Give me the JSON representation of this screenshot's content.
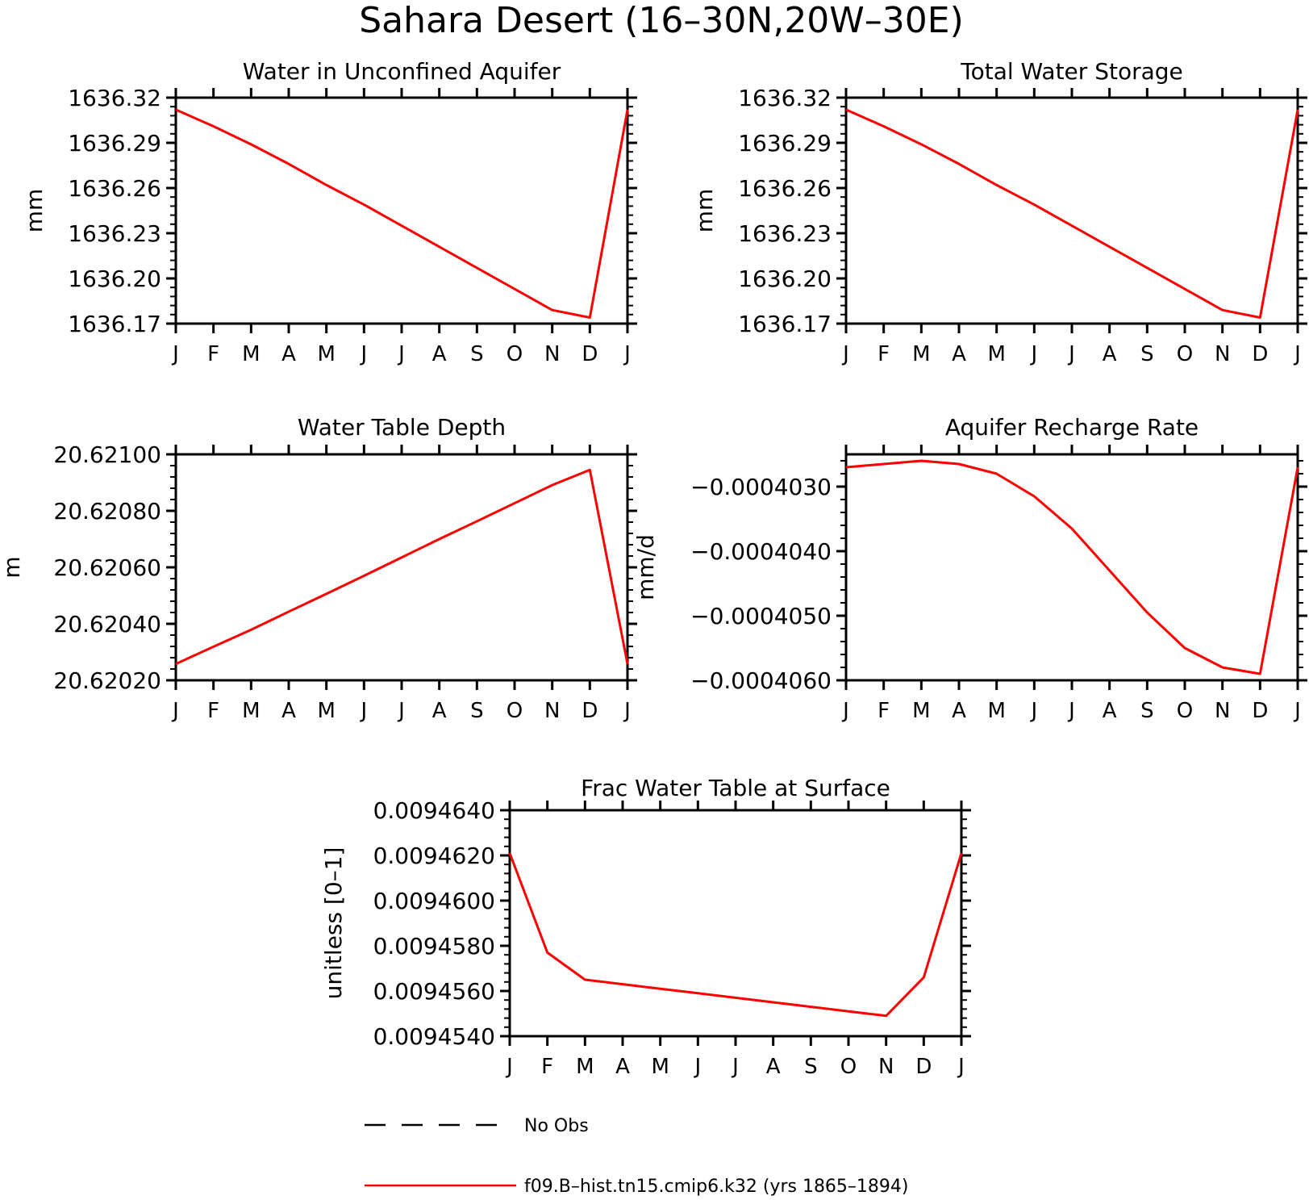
{
  "title": "Sahara Desert (16–30N,20W–30E)",
  "months": [
    "J",
    "F",
    "M",
    "A",
    "M",
    "J",
    "J",
    "A",
    "S",
    "O",
    "N",
    "D",
    "J"
  ],
  "legend": [
    {
      "label": "No Obs",
      "color": "#000000",
      "style": "dashed"
    },
    {
      "label": "f09.B–hist.tn15.cmip6.k32 (yrs 1865–1894)",
      "color": "#ff0000",
      "style": "solid"
    }
  ],
  "chart_data": [
    {
      "type": "line",
      "title": "Water in Unconfined Aquifer",
      "ylabel": "mm",
      "ylim": [
        1636.17,
        1636.32
      ],
      "yticks": [
        "1636.32",
        "1636.29",
        "1636.26",
        "1636.23",
        "1636.20",
        "1636.17"
      ],
      "ytick_values": [
        1636.32,
        1636.29,
        1636.26,
        1636.23,
        1636.2,
        1636.17
      ],
      "x": [
        1,
        2,
        3,
        4,
        5,
        6,
        7,
        8,
        9,
        10,
        11,
        12,
        13
      ],
      "series": [
        {
          "name": "f09.B–hist.tn15.cmip6.k32 (yrs 1865–1894)",
          "values": [
            1636.312,
            1636.301,
            1636.289,
            1636.276,
            1636.262,
            1636.249,
            1636.235,
            1636.221,
            1636.207,
            1636.193,
            1636.179,
            1636.174,
            1636.312
          ]
        }
      ]
    },
    {
      "type": "line",
      "title": "Total Water Storage",
      "ylabel": "mm",
      "ylim": [
        1636.17,
        1636.32
      ],
      "yticks": [
        "1636.32",
        "1636.29",
        "1636.26",
        "1636.23",
        "1636.20",
        "1636.17"
      ],
      "ytick_values": [
        1636.32,
        1636.29,
        1636.26,
        1636.23,
        1636.2,
        1636.17
      ],
      "x": [
        1,
        2,
        3,
        4,
        5,
        6,
        7,
        8,
        9,
        10,
        11,
        12,
        13
      ],
      "series": [
        {
          "name": "f09.B–hist.tn15.cmip6.k32 (yrs 1865–1894)",
          "values": [
            1636.312,
            1636.301,
            1636.289,
            1636.276,
            1636.262,
            1636.249,
            1636.235,
            1636.221,
            1636.207,
            1636.193,
            1636.179,
            1636.174,
            1636.312
          ]
        }
      ]
    },
    {
      "type": "line",
      "title": "Water Table Depth",
      "ylabel": "m",
      "ylim": [
        20.6202,
        20.621
      ],
      "yticks": [
        "20.62100",
        "20.62080",
        "20.62060",
        "20.62040",
        "20.62020"
      ],
      "ytick_values": [
        20.621,
        20.6208,
        20.6206,
        20.6204,
        20.6202
      ],
      "x": [
        1,
        2,
        3,
        4,
        5,
        6,
        7,
        8,
        9,
        10,
        11,
        12,
        13
      ],
      "series": [
        {
          "name": "f09.B–hist.tn15.cmip6.k32 (yrs 1865–1894)",
          "values": [
            20.620258,
            20.620319,
            20.620379,
            20.620443,
            20.620506,
            20.62057,
            20.620635,
            20.6207,
            20.620763,
            20.620827,
            20.620891,
            20.620945,
            20.620258
          ]
        }
      ]
    },
    {
      "type": "line",
      "title": "Aquifer Recharge Rate",
      "ylabel": "mm/d",
      "ylim": [
        -0.000406,
        -0.0004025
      ],
      "yticks": [
        "−0.0004030",
        "−0.0004040",
        "−0.0004050",
        "−0.0004060"
      ],
      "ytick_values": [
        -0.000403,
        -0.000404,
        -0.000405,
        -0.000406
      ],
      "x": [
        1,
        2,
        3,
        4,
        5,
        6,
        7,
        8,
        9,
        10,
        11,
        12,
        13
      ],
      "series": [
        {
          "name": "f09.B–hist.tn15.cmip6.k32 (yrs 1865–1894)",
          "values": [
            -0.0004027,
            -0.00040265,
            -0.0004026,
            -0.00040265,
            -0.0004028,
            -0.00040315,
            -0.00040365,
            -0.0004043,
            -0.00040495,
            -0.0004055,
            -0.0004058,
            -0.0004059,
            -0.0004027
          ]
        }
      ]
    },
    {
      "type": "line",
      "title": "Frac Water Table at Surface",
      "ylabel": "unitless [0–1]",
      "ylim": [
        0.009454,
        0.009464
      ],
      "yticks": [
        "0.0094640",
        "0.0094620",
        "0.0094600",
        "0.0094580",
        "0.0094560",
        "0.0094540"
      ],
      "ytick_values": [
        0.009464,
        0.009462,
        0.00946,
        0.009458,
        0.009456,
        0.009454
      ],
      "x": [
        1,
        2,
        3,
        4,
        5,
        6,
        7,
        8,
        9,
        10,
        11,
        12,
        13
      ],
      "series": [
        {
          "name": "f09.B–hist.tn15.cmip6.k32 (yrs 1865–1894)",
          "values": [
            0.0094621,
            0.0094577,
            0.0094565,
            0.0094563,
            0.0094561,
            0.0094559,
            0.0094557,
            0.0094555,
            0.0094553,
            0.0094551,
            0.0094549,
            0.0094566,
            0.0094621
          ]
        }
      ]
    }
  ]
}
